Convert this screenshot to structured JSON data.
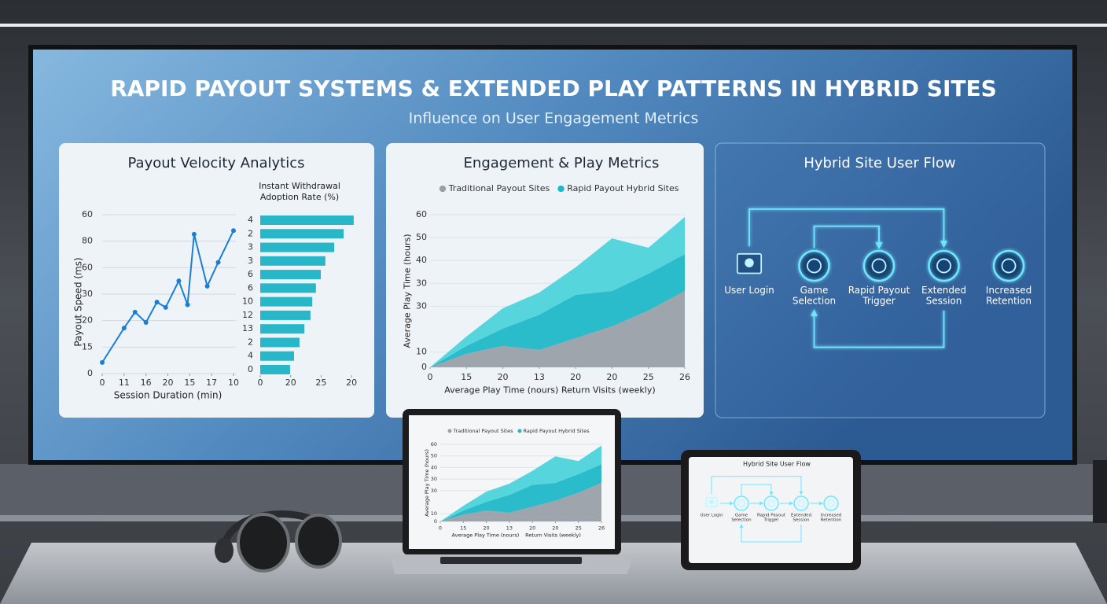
{
  "header": {
    "title": "RAPID PAYOUT SYSTEMS & EXTENDED PLAY PATTERNS IN HYBRID SITES",
    "subtitle": "Influence on User Engagement Metrics"
  },
  "chart_data": [
    {
      "type": "line",
      "title": "Payout Velocity Analytics",
      "xlabel": "Session Duration (min)",
      "ylabel": "Payout Speed (ms)",
      "color": "#1a7fd4",
      "grid": true,
      "x": [
        0,
        10,
        15,
        20,
        25,
        29,
        35,
        39,
        42,
        48,
        53,
        60
      ],
      "values": [
        4.2,
        17.2,
        23.2,
        19.3,
        27,
        25,
        35,
        26,
        52.6,
        33,
        42,
        54
      ],
      "xlim": [
        0,
        60
      ],
      "xticks": [
        0,
        {
          "value": 10,
          "label": "11"
        },
        {
          "value": 20,
          "label": "16"
        },
        {
          "value": 30,
          "label": "20"
        },
        {
          "value": 40,
          "label": "15"
        },
        {
          "value": 50,
          "label": "17"
        },
        {
          "value": 60,
          "label": "10"
        }
      ],
      "ylim": [
        0,
        60
      ],
      "yticks": [
        0,
        {
          "value": 10,
          "label": "15"
        },
        20,
        30,
        {
          "value": 40,
          "label": "60"
        },
        {
          "value": 50,
          "label": "80"
        },
        60
      ]
    },
    {
      "type": "hbar",
      "title": [
        "Instant Withdrawal",
        "Adoption Rate (%)"
      ],
      "color": "#27b7c9",
      "categories": [
        "4",
        "2",
        "3",
        "3",
        "6",
        "6",
        "10",
        "12",
        "13",
        "2",
        "4",
        "0"
      ],
      "values": [
        30.7,
        27.4,
        24.3,
        21.4,
        19.9,
        18.3,
        17.1,
        16.5,
        14.5,
        12.9,
        11.1,
        9.8
      ],
      "xlim": [
        0,
        31
      ],
      "xticks": [
        0,
        {
          "value": 10,
          "label": "20"
        },
        {
          "value": 20,
          "label": "25"
        },
        {
          "value": 30,
          "label": "20"
        }
      ]
    },
    {
      "type": "area",
      "stacked": true,
      "title": "Engagement & Play Metrics",
      "ylabel": "Average Play Time (hours)",
      "xlabels": [
        "Average Play Time (nours)",
        "Return Visits (weekly)"
      ],
      "grid": true,
      "x": [
        0,
        10,
        20,
        30,
        40,
        50,
        60,
        70
      ],
      "xlim": [
        0,
        70
      ],
      "xticks": [
        0,
        {
          "value": 10,
          "label": "15"
        },
        {
          "value": 20,
          "label": "20"
        },
        {
          "value": 30,
          "label": "13"
        },
        {
          "value": 40,
          "label": "20"
        },
        {
          "value": 50,
          "label": "20"
        },
        {
          "value": 60,
          "label": "25"
        },
        {
          "value": 70,
          "label": "26"
        }
      ],
      "ylim": [
        0,
        60
      ],
      "yticks": [
        0,
        {
          "value": 6,
          "label": "10"
        },
        {
          "value": 24,
          "label": "30"
        },
        {
          "value": 33,
          "label": "30"
        },
        {
          "value": 42,
          "label": "40"
        },
        {
          "value": 51,
          "label": "50"
        },
        60
      ],
      "series": [
        {
          "name": "Traditional Payout Sites",
          "color": "#9aa0a8",
          "values": [
            0,
            5.3,
            8.4,
            6.8,
            11.4,
            16.1,
            22.3,
            30
          ]
        },
        {
          "name": "Rapid Payout Hybrid Sites",
          "color": "#1fb8c8",
          "values": [
            0,
            3.1,
            6.8,
            13.9,
            17.1,
            13.9,
            14.5,
            14.5
          ]
        },
        {
          "color": "#4dd4da",
          "values": [
            0,
            3.7,
            8,
            8.7,
            10.8,
            20.7,
            10.2,
            14.6
          ]
        }
      ]
    }
  ],
  "flow": {
    "title": "Hybrid Site User Flow",
    "nodes": [
      {
        "label": [
          "User Login"
        ]
      },
      {
        "label": [
          "Game",
          "Selection"
        ]
      },
      {
        "label": [
          "Rapid Payout",
          "Trigger"
        ]
      },
      {
        "label": [
          "Extended",
          "Session"
        ]
      },
      {
        "label": [
          "Increased",
          "Retention"
        ]
      }
    ]
  }
}
